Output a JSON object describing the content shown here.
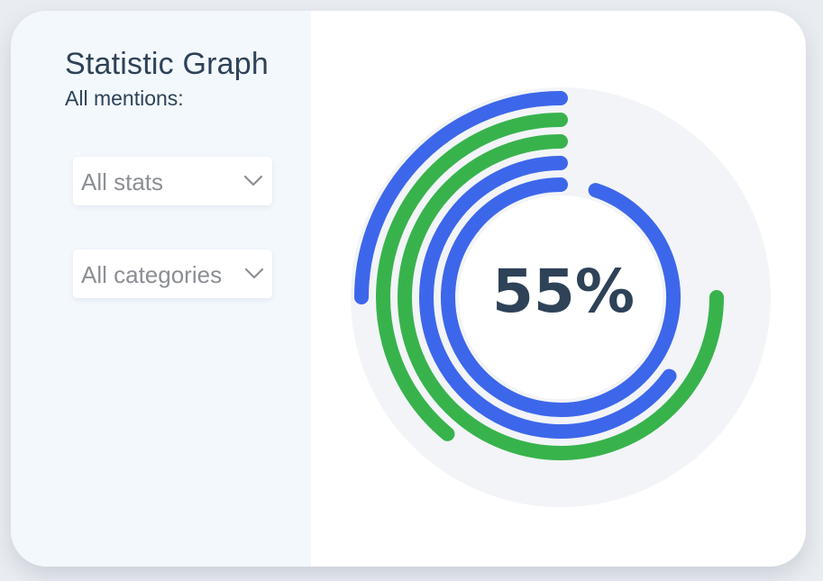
{
  "sidebar": {
    "title": "Statistic Graph",
    "subtitle": "All mentions:",
    "stats_dropdown": {
      "label": "All stats",
      "icon": "chevron-down-icon"
    },
    "categories_dropdown": {
      "label": "All categories",
      "icon": "chevron-down-icon"
    }
  },
  "center_value": "55%",
  "colors": {
    "blue": "#3d67ea",
    "green": "#38b34c",
    "track": "#f2f4f7",
    "text": "#2e4258",
    "sidebar_bg": "#f3f8fd"
  },
  "chart_data": {
    "type": "radial-bar",
    "center_label": "55%",
    "rings": [
      {
        "color": "blue",
        "fraction": 0.25
      },
      {
        "color": "green",
        "fraction": 0.39
      },
      {
        "color": "green",
        "fraction": 0.75
      },
      {
        "color": "blue",
        "fraction": 0.65
      },
      {
        "color": "blue",
        "fraction": 0.95
      }
    ]
  }
}
